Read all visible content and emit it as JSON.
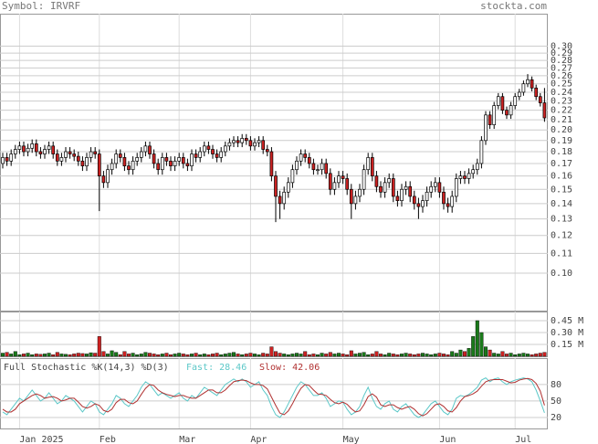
{
  "header": {
    "symbol": "Symbol: IRVRF",
    "site": "stockta.com"
  },
  "chart_data": [
    {
      "type": "candlestick",
      "log_scale": true,
      "grid": true,
      "up_color": "#ffffff",
      "down_color": "#cc2222",
      "categories": [
        null,
        null,
        null,
        null,
        "Jan 2025",
        null,
        null,
        null,
        null,
        null,
        null,
        null,
        null,
        null,
        null,
        null,
        null,
        null,
        null,
        null,
        null,
        null,
        null,
        "Feb",
        null,
        null,
        null,
        null,
        null,
        null,
        null,
        null,
        null,
        null,
        null,
        null,
        null,
        null,
        null,
        null,
        null,
        null,
        "Mar",
        null,
        null,
        null,
        null,
        null,
        null,
        null,
        null,
        null,
        null,
        null,
        null,
        null,
        null,
        null,
        null,
        "Apr",
        null,
        null,
        null,
        null,
        null,
        null,
        null,
        null,
        null,
        null,
        null,
        null,
        null,
        null,
        null,
        null,
        null,
        null,
        null,
        null,
        null,
        "May",
        null,
        null,
        null,
        null,
        null,
        null,
        null,
        null,
        null,
        null,
        null,
        null,
        null,
        null,
        null,
        null,
        null,
        null,
        null,
        null,
        null,
        null,
        "Jun",
        null,
        null,
        null,
        null,
        null,
        null,
        null,
        null,
        null,
        null,
        null,
        null,
        null,
        null,
        null,
        null,
        null,
        "Jul",
        null,
        null,
        null,
        null,
        null,
        null,
        null
      ],
      "open": [
        0.17,
        0.175,
        0.172,
        0.178,
        0.182,
        0.185,
        0.18,
        0.183,
        0.187,
        0.18,
        0.178,
        0.182,
        0.185,
        0.178,
        0.172,
        0.175,
        0.18,
        0.178,
        0.176,
        0.172,
        0.168,
        0.175,
        0.18,
        0.178,
        0.16,
        0.155,
        0.165,
        0.17,
        0.178,
        0.175,
        0.168,
        0.165,
        0.172,
        0.175,
        0.18,
        0.185,
        0.178,
        0.17,
        0.165,
        0.175,
        0.172,
        0.168,
        0.172,
        0.175,
        0.17,
        0.168,
        0.178,
        0.175,
        0.18,
        0.185,
        0.182,
        0.178,
        0.175,
        0.18,
        0.185,
        0.188,
        0.19,
        0.188,
        0.192,
        0.19,
        0.185,
        0.188,
        0.19,
        0.182,
        0.18,
        0.16,
        0.145,
        0.14,
        0.148,
        0.155,
        0.165,
        0.172,
        0.178,
        0.175,
        0.17,
        0.165,
        0.165,
        0.17,
        0.162,
        0.15,
        0.155,
        0.16,
        0.158,
        0.15,
        0.14,
        0.145,
        0.15,
        0.165,
        0.175,
        0.16,
        0.152,
        0.148,
        0.155,
        0.158,
        0.145,
        0.142,
        0.15,
        0.152,
        0.145,
        0.14,
        0.138,
        0.142,
        0.148,
        0.152,
        0.155,
        0.148,
        0.14,
        0.138,
        0.145,
        0.158,
        0.16,
        0.158,
        0.162,
        0.165,
        0.17,
        0.19,
        0.215,
        0.205,
        0.225,
        0.235,
        0.22,
        0.215,
        0.225,
        0.235,
        0.24,
        0.25,
        0.255,
        0.245,
        0.235,
        0.228
      ],
      "high": [
        0.179,
        0.179,
        0.182,
        0.186,
        0.189,
        0.189,
        0.187,
        0.191,
        0.191,
        0.184,
        0.186,
        0.189,
        0.189,
        0.182,
        0.179,
        0.184,
        0.184,
        0.182,
        0.18,
        0.176,
        0.179,
        0.184,
        0.184,
        0.182,
        0.164,
        0.169,
        0.174,
        0.182,
        0.182,
        0.179,
        0.172,
        0.176,
        0.179,
        0.184,
        0.189,
        0.189,
        0.182,
        0.174,
        0.179,
        0.179,
        0.176,
        0.176,
        0.179,
        0.179,
        0.174,
        0.182,
        0.182,
        0.184,
        0.189,
        0.189,
        0.186,
        0.182,
        0.184,
        0.189,
        0.192,
        0.194,
        0.194,
        0.196,
        0.196,
        0.194,
        0.192,
        0.194,
        0.194,
        0.186,
        0.184,
        0.164,
        0.149,
        0.152,
        0.159,
        0.169,
        0.176,
        0.182,
        0.182,
        0.179,
        0.174,
        0.169,
        0.174,
        0.174,
        0.166,
        0.159,
        0.164,
        0.164,
        0.162,
        0.154,
        0.149,
        0.154,
        0.169,
        0.179,
        0.179,
        0.164,
        0.156,
        0.159,
        0.162,
        0.162,
        0.149,
        0.154,
        0.156,
        0.156,
        0.149,
        0.144,
        0.146,
        0.152,
        0.156,
        0.159,
        0.159,
        0.152,
        0.144,
        0.149,
        0.162,
        0.164,
        0.164,
        0.166,
        0.169,
        0.174,
        0.194,
        0.219,
        0.219,
        0.229,
        0.239,
        0.239,
        0.224,
        0.229,
        0.239,
        0.244,
        0.254,
        0.262,
        0.259,
        0.249,
        0.239,
        0.245
      ],
      "low": [
        0.166,
        0.168,
        0.168,
        0.174,
        0.178,
        0.176,
        0.176,
        0.179,
        0.176,
        0.174,
        0.174,
        0.178,
        0.174,
        0.168,
        0.168,
        0.171,
        0.174,
        0.172,
        0.168,
        0.164,
        0.164,
        0.171,
        0.174,
        0.135,
        0.151,
        0.151,
        0.161,
        0.166,
        0.171,
        0.164,
        0.161,
        0.161,
        0.168,
        0.171,
        0.176,
        0.174,
        0.166,
        0.161,
        0.161,
        0.168,
        0.164,
        0.164,
        0.168,
        0.166,
        0.164,
        0.164,
        0.171,
        0.171,
        0.176,
        0.178,
        0.174,
        0.171,
        0.171,
        0.176,
        0.181,
        0.184,
        0.184,
        0.184,
        0.186,
        0.181,
        0.181,
        0.184,
        0.178,
        0.176,
        0.156,
        0.128,
        0.13,
        0.136,
        0.144,
        0.151,
        0.161,
        0.168,
        0.171,
        0.166,
        0.161,
        0.161,
        0.161,
        0.158,
        0.146,
        0.146,
        0.151,
        0.154,
        0.146,
        0.13,
        0.136,
        0.141,
        0.146,
        0.161,
        0.156,
        0.148,
        0.144,
        0.144,
        0.151,
        0.141,
        0.138,
        0.138,
        0.146,
        0.141,
        0.136,
        0.13,
        0.134,
        0.138,
        0.144,
        0.148,
        0.144,
        0.136,
        0.134,
        0.134,
        0.141,
        0.154,
        0.154,
        0.154,
        0.158,
        0.161,
        0.166,
        0.186,
        0.201,
        0.201,
        0.221,
        0.216,
        0.211,
        0.211,
        0.221,
        0.231,
        0.236,
        0.246,
        0.241,
        0.231,
        0.224,
        0.208
      ],
      "close": [
        0.175,
        0.172,
        0.178,
        0.182,
        0.185,
        0.18,
        0.183,
        0.187,
        0.18,
        0.178,
        0.182,
        0.185,
        0.178,
        0.172,
        0.175,
        0.18,
        0.178,
        0.176,
        0.172,
        0.168,
        0.175,
        0.18,
        0.178,
        0.16,
        0.155,
        0.165,
        0.17,
        0.178,
        0.175,
        0.168,
        0.165,
        0.172,
        0.175,
        0.18,
        0.185,
        0.178,
        0.17,
        0.165,
        0.175,
        0.172,
        0.168,
        0.172,
        0.175,
        0.17,
        0.168,
        0.178,
        0.175,
        0.18,
        0.185,
        0.182,
        0.178,
        0.175,
        0.18,
        0.185,
        0.188,
        0.19,
        0.188,
        0.192,
        0.19,
        0.185,
        0.188,
        0.19,
        0.182,
        0.18,
        0.16,
        0.145,
        0.14,
        0.148,
        0.155,
        0.165,
        0.172,
        0.178,
        0.175,
        0.17,
        0.165,
        0.165,
        0.17,
        0.162,
        0.15,
        0.155,
        0.16,
        0.158,
        0.15,
        0.14,
        0.145,
        0.15,
        0.165,
        0.175,
        0.16,
        0.152,
        0.148,
        0.155,
        0.158,
        0.145,
        0.142,
        0.15,
        0.152,
        0.145,
        0.14,
        0.138,
        0.142,
        0.148,
        0.152,
        0.155,
        0.148,
        0.14,
        0.138,
        0.145,
        0.158,
        0.16,
        0.158,
        0.162,
        0.165,
        0.17,
        0.19,
        0.215,
        0.205,
        0.225,
        0.235,
        0.22,
        0.215,
        0.225,
        0.235,
        0.24,
        0.25,
        0.255,
        0.245,
        0.235,
        0.228,
        0.212
      ],
      "ylim": [
        0.0834,
        0.351
      ],
      "yticks": [
        {
          "value": 0.1,
          "label": "0.10"
        },
        0.11,
        0.12,
        0.13,
        0.14,
        0.15,
        0.16,
        0.17,
        0.18,
        0.19,
        {
          "value": 0.2,
          "label": "0.20"
        },
        0.21,
        0.22,
        0.23,
        0.24,
        0.25,
        0.26,
        0.27,
        0.28,
        0.29,
        {
          "value": 0.3,
          "label": "0.30"
        }
      ]
    },
    {
      "type": "bar",
      "up_color": "#1a7a1a",
      "down_color": "#cc2222",
      "values": [
        40000,
        50000,
        30000,
        60000,
        20000,
        30000,
        40000,
        20000,
        30000,
        25000,
        30000,
        40000,
        20000,
        50000,
        30000,
        25000,
        20000,
        30000,
        40000,
        35000,
        30000,
        45000,
        40000,
        250000,
        60000,
        30000,
        70000,
        50000,
        20000,
        60000,
        30000,
        40000,
        20000,
        30000,
        50000,
        40000,
        30000,
        20000,
        30000,
        40000,
        20000,
        30000,
        40000,
        30000,
        20000,
        30000,
        40000,
        20000,
        30000,
        20000,
        30000,
        40000,
        20000,
        30000,
        40000,
        50000,
        30000,
        20000,
        30000,
        40000,
        30000,
        20000,
        40000,
        30000,
        120000,
        60000,
        40000,
        30000,
        20000,
        30000,
        40000,
        30000,
        60000,
        20000,
        30000,
        20000,
        40000,
        30000,
        50000,
        30000,
        40000,
        30000,
        20000,
        70000,
        30000,
        40000,
        50000,
        20000,
        30000,
        60000,
        30000,
        20000,
        40000,
        30000,
        20000,
        30000,
        40000,
        30000,
        20000,
        30000,
        40000,
        30000,
        20000,
        30000,
        40000,
        30000,
        20000,
        60000,
        40000,
        80000,
        60000,
        100000,
        250000,
        450000,
        300000,
        120000,
        80000,
        40000,
        30000,
        60000,
        30000,
        40000,
        20000,
        30000,
        40000,
        30000,
        20000,
        30000,
        40000,
        50000
      ],
      "ylim": [
        0,
        565000
      ],
      "yticks": [
        {
          "value": 150000,
          "label": "0.15 M"
        },
        {
          "value": 300000,
          "label": "0.30 M"
        },
        {
          "value": 450000,
          "label": "0.45 M"
        }
      ]
    },
    {
      "type": "line",
      "title": "Full Stochastic %K(14,3) %D(3)",
      "series": [
        {
          "name": "Fast: 28.46",
          "color": "#5cc8c8",
          "values": [
            30,
            25,
            35,
            45,
            55,
            50,
            60,
            70,
            60,
            50,
            55,
            65,
            55,
            45,
            50,
            60,
            55,
            50,
            40,
            30,
            40,
            50,
            45,
            30,
            25,
            35,
            45,
            60,
            55,
            45,
            40,
            50,
            60,
            75,
            85,
            80,
            70,
            60,
            65,
            60,
            55,
            60,
            65,
            55,
            50,
            60,
            55,
            65,
            75,
            70,
            65,
            60,
            70,
            80,
            85,
            90,
            85,
            90,
            85,
            75,
            80,
            85,
            70,
            60,
            40,
            25,
            20,
            30,
            45,
            60,
            75,
            85,
            80,
            70,
            60,
            60,
            65,
            55,
            40,
            45,
            50,
            48,
            35,
            25,
            30,
            40,
            60,
            75,
            55,
            40,
            35,
            45,
            50,
            35,
            30,
            40,
            45,
            35,
            25,
            20,
            25,
            35,
            45,
            50,
            40,
            30,
            25,
            35,
            55,
            60,
            58,
            62,
            68,
            75,
            88,
            92,
            85,
            90,
            92,
            85,
            80,
            85,
            88,
            90,
            92,
            90,
            85,
            70,
            50,
            28.46
          ]
        },
        {
          "name": "Slow: 42.06",
          "color": "#b03030",
          "values": [
            35,
            30,
            30,
            35,
            45,
            50,
            55,
            60,
            63,
            60,
            55,
            57,
            58,
            55,
            50,
            52,
            55,
            55,
            48,
            40,
            37,
            40,
            45,
            42,
            33,
            30,
            35,
            47,
            53,
            53,
            47,
            45,
            50,
            62,
            73,
            80,
            78,
            70,
            65,
            62,
            60,
            58,
            60,
            60,
            57,
            55,
            55,
            60,
            65,
            70,
            70,
            65,
            65,
            70,
            78,
            85,
            87,
            88,
            87,
            83,
            80,
            80,
            78,
            72,
            57,
            42,
            28,
            25,
            32,
            45,
            60,
            73,
            80,
            78,
            70,
            63,
            62,
            60,
            53,
            47,
            45,
            48,
            44,
            36,
            30,
            32,
            43,
            58,
            63,
            57,
            43,
            40,
            43,
            43,
            38,
            35,
            38,
            40,
            35,
            27,
            23,
            27,
            35,
            43,
            45,
            40,
            32,
            30,
            38,
            50,
            58,
            60,
            63,
            68,
            77,
            85,
            88,
            89,
            89,
            89,
            86,
            83,
            84,
            88,
            90,
            91,
            89,
            82,
            68,
            42.06
          ]
        }
      ],
      "ylim": [
        0,
        128
      ],
      "yticks": [
        20,
        50,
        80
      ]
    }
  ]
}
